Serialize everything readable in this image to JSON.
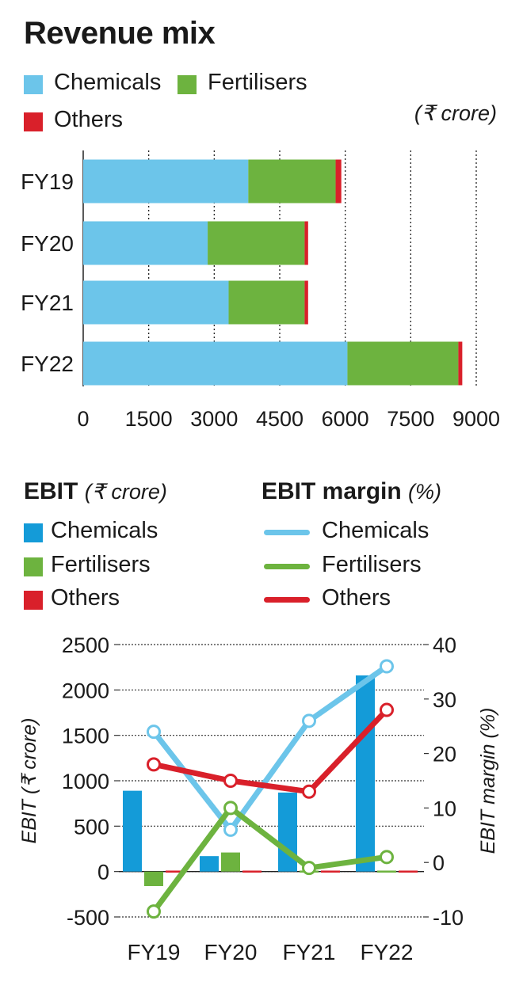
{
  "colors": {
    "chemicals_bar": "#6cc5ea",
    "fertilisers": "#6db33f",
    "others": "#d9202a",
    "chemicals_ebit": "#149bd8",
    "chemicals_line": "#6cc5ea"
  },
  "revenue": {
    "title": "Revenue mix",
    "unit": "(₹ crore)",
    "legend": [
      "Chemicals",
      "Fertilisers",
      "Others"
    ]
  },
  "ebit": {
    "title": "EBIT",
    "title_unit": "(₹ crore)",
    "margin_title": "EBIT margin",
    "margin_unit": "(%)",
    "legend": [
      "Chemicals",
      "Fertilisers",
      "Others"
    ],
    "margin_legend": [
      "Chemicals",
      "Fertilisers",
      "Others"
    ]
  },
  "chart_data": [
    {
      "type": "bar",
      "orientation": "horizontal",
      "stacked": true,
      "title": "Revenue mix",
      "unit": "(₹ crore)",
      "categories": [
        "FY19",
        "FY20",
        "FY21",
        "FY22"
      ],
      "series": [
        {
          "name": "Chemicals",
          "values": [
            3780,
            2850,
            3330,
            6050
          ]
        },
        {
          "name": "Fertilisers",
          "values": [
            2000,
            2220,
            1740,
            2540
          ]
        },
        {
          "name": "Others",
          "values": [
            130,
            80,
            80,
            90
          ]
        }
      ],
      "xlim": [
        0,
        9000
      ],
      "xticks": [
        "0",
        "1500",
        "3000",
        "4500",
        "6000",
        "7500",
        "9000"
      ],
      "grid": "vertical dotted"
    },
    {
      "type": "bar+line",
      "categories": [
        "FY19",
        "FY20",
        "FY21",
        "FY22"
      ],
      "ylabel": "EBIT (₹ crore)",
      "y2label": "EBIT margin (%)",
      "ylim": [
        -500,
        2500
      ],
      "yticks": [
        "2500",
        "2000",
        "1500",
        "1000",
        "500",
        "0",
        "-500"
      ],
      "y2lim": [
        -10,
        40
      ],
      "y2ticks": [
        "40",
        "30",
        "20",
        "10",
        "0",
        "-10"
      ],
      "bar_series": [
        {
          "name": "Chemicals",
          "values": [
            890,
            170,
            870,
            2160
          ]
        },
        {
          "name": "Fertilisers",
          "values": [
            -160,
            210,
            0,
            10
          ]
        },
        {
          "name": "Others",
          "values": [
            20,
            10,
            10,
            20
          ]
        }
      ],
      "line_series": [
        {
          "name": "Chemicals",
          "values": [
            24,
            6,
            26,
            36
          ]
        },
        {
          "name": "Fertilisers",
          "values": [
            -9,
            10,
            -1,
            1
          ]
        },
        {
          "name": "Others",
          "values": [
            18,
            15,
            13,
            28
          ]
        }
      ]
    }
  ]
}
